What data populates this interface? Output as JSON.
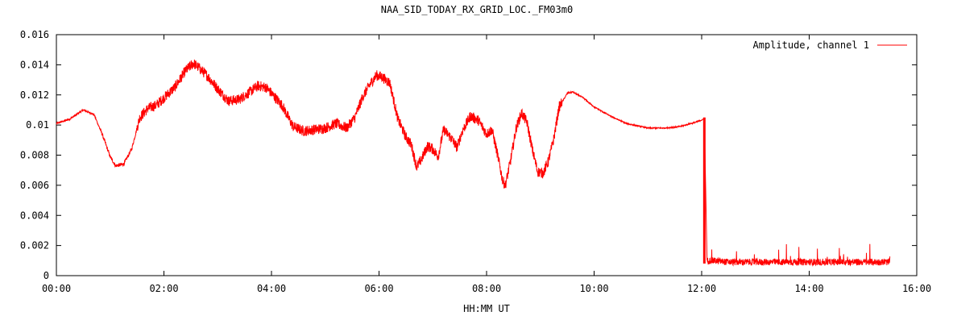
{
  "chart_data": {
    "type": "line",
    "title": "NAA_SID_TODAY_RX_GRID_LOC._FM03m0",
    "xlabel": "HH:MM UT",
    "ylabel": "",
    "x_tick_labels": [
      "00:00",
      "02:00",
      "04:00",
      "06:00",
      "08:00",
      "10:00",
      "12:00",
      "14:00",
      "16:00"
    ],
    "y_tick_labels": [
      "0",
      "0.002",
      "0.004",
      "0.006",
      "0.008",
      "0.01",
      "0.012",
      "0.014",
      "0.016"
    ],
    "xlim_hours": [
      0,
      16
    ],
    "ylim": [
      0,
      0.016
    ],
    "grid": false,
    "legend_position": "top-right",
    "series": [
      {
        "name": "Amplitude, channel 1",
        "color": "#ff0000",
        "x_hours": [
          0.0,
          0.25,
          0.5,
          0.7,
          0.85,
          1.0,
          1.1,
          1.25,
          1.4,
          1.55,
          1.7,
          1.85,
          2.0,
          2.2,
          2.4,
          2.55,
          2.65,
          2.8,
          3.0,
          3.2,
          3.4,
          3.6,
          3.75,
          3.9,
          4.05,
          4.2,
          4.4,
          4.6,
          4.8,
          5.0,
          5.2,
          5.4,
          5.55,
          5.7,
          5.85,
          5.95,
          6.05,
          6.2,
          6.35,
          6.5,
          6.6,
          6.7,
          6.8,
          6.9,
          7.0,
          7.1,
          7.2,
          7.35,
          7.45,
          7.55,
          7.7,
          7.85,
          8.0,
          8.1,
          8.2,
          8.3,
          8.35,
          8.45,
          8.55,
          8.65,
          8.75,
          8.85,
          8.95,
          9.05,
          9.15,
          9.25,
          9.35,
          9.5,
          9.6,
          9.8,
          10.0,
          10.3,
          10.6,
          11.0,
          11.3,
          11.6,
          11.9,
          12.05,
          12.1,
          12.2,
          12.5,
          13.0,
          13.5,
          14.0,
          14.5,
          15.0,
          15.5
        ],
        "y": [
          0.0101,
          0.0104,
          0.011,
          0.0107,
          0.0094,
          0.0079,
          0.0073,
          0.0074,
          0.0084,
          0.0105,
          0.0111,
          0.0113,
          0.0118,
          0.0125,
          0.0136,
          0.0141,
          0.0138,
          0.0133,
          0.0124,
          0.0116,
          0.0117,
          0.0122,
          0.0126,
          0.0125,
          0.0119,
          0.0113,
          0.0099,
          0.0096,
          0.0097,
          0.0098,
          0.0101,
          0.0098,
          0.0105,
          0.0119,
          0.0128,
          0.0133,
          0.0132,
          0.0128,
          0.0104,
          0.0092,
          0.0087,
          0.0072,
          0.0078,
          0.0086,
          0.0084,
          0.0079,
          0.0097,
          0.0091,
          0.0085,
          0.0096,
          0.0106,
          0.0103,
          0.0094,
          0.0097,
          0.0081,
          0.0063,
          0.006,
          0.0077,
          0.0098,
          0.0108,
          0.0102,
          0.0084,
          0.0069,
          0.0068,
          0.0076,
          0.0091,
          0.0112,
          0.0121,
          0.0122,
          0.0118,
          0.0112,
          0.0106,
          0.0101,
          0.0098,
          0.0098,
          0.0099,
          0.0102,
          0.0104,
          0.001,
          0.001,
          0.0009,
          0.0009,
          0.0009,
          0.0009,
          0.0009,
          0.0009,
          0.0009
        ]
      }
    ]
  }
}
